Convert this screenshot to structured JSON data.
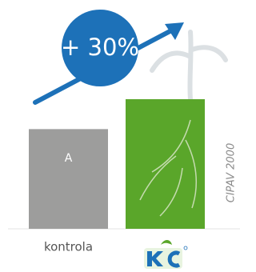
{
  "chart_data": {
    "type": "bar",
    "categories": [
      "kontrola",
      null
    ],
    "values": [
      100,
      130
    ],
    "colors": [
      "#9d9d9c",
      "#5aa62a"
    ],
    "ylim": [
      0,
      130
    ],
    "annotations": {
      "bar_text": "A",
      "change": "+ 30%",
      "source": "CIPAV 2000"
    }
  }
}
